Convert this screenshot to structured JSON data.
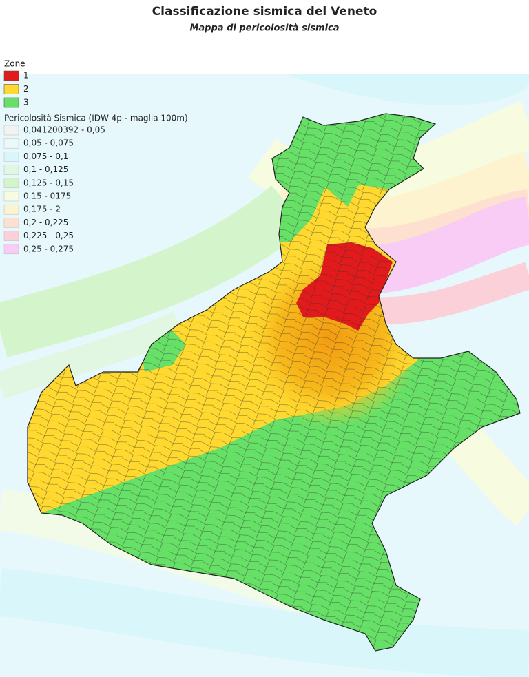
{
  "header": {
    "title": "Classificazione sismica del Veneto",
    "subtitle": "Mappa di pericolosità sismica"
  },
  "legend": {
    "zones": {
      "title": "Zone",
      "items": [
        {
          "label": "1",
          "color": "#e31a1c"
        },
        {
          "label": "2",
          "color": "#ffd92f"
        },
        {
          "label": "3",
          "color": "#66e066"
        }
      ]
    },
    "hazard": {
      "title": "Pericolosità Sismica (IDW 4p - maglia 100m)",
      "items": [
        {
          "label": "0,041200392 - 0,05",
          "color": "#f2f2f2"
        },
        {
          "label": "0,05 - 0,075",
          "color": "#eaf8f8"
        },
        {
          "label": "0,075 - 0,1",
          "color": "#d9f6fb"
        },
        {
          "label": "0,1 - 0,125",
          "color": "#e2f7e2"
        },
        {
          "label": "0,125 - 0,15",
          "color": "#d4f5cc"
        },
        {
          "label": "0.15 - 0175",
          "color": "#f7fbe0"
        },
        {
          "label": "0,175 - 2",
          "color": "#fdf3cf"
        },
        {
          "label": "0,2 - 0,225",
          "color": "#fde0d0"
        },
        {
          "label": "0,225 - 0,25",
          "color": "#fbd0d8"
        },
        {
          "label": "0,25 - 0,275",
          "color": "#f8ccf4"
        }
      ]
    }
  }
}
